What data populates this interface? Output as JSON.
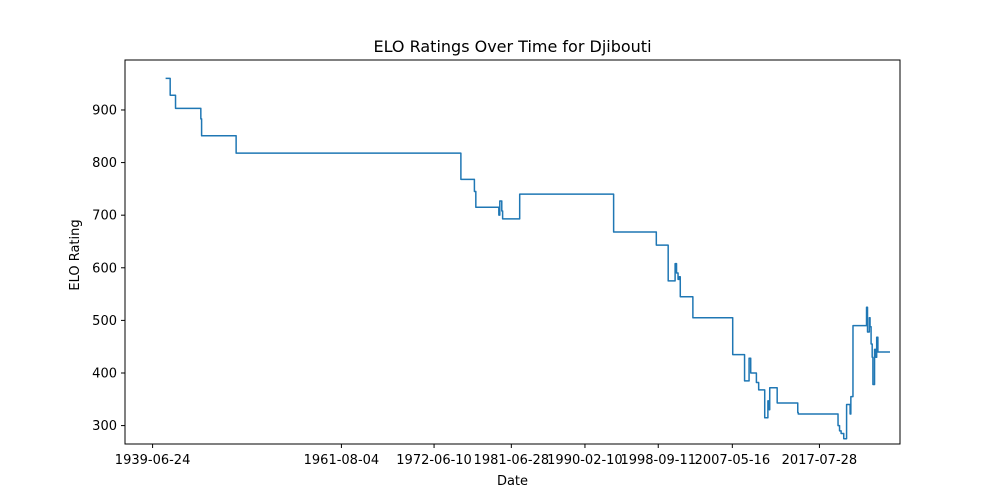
{
  "chart_data": {
    "type": "line",
    "title": "ELO Ratings Over Time for Djibouti",
    "xlabel": "Date",
    "ylabel": "ELO Rating",
    "x_ticks": [
      "1939-06-24",
      "1961-08-04",
      "1972-06-10",
      "1981-06-28",
      "1990-02-10",
      "1998-09-11",
      "2007-05-16",
      "2017-07-28"
    ],
    "y_ticks": [
      300,
      400,
      500,
      600,
      700,
      800,
      900
    ],
    "xlim": [
      "1936-03-31",
      "2027-01-03"
    ],
    "ylim": [
      265,
      995
    ],
    "grid": false,
    "legend": false,
    "line_color": "#1f77b4",
    "x": [
      "1941-01-01",
      "1941-07-15",
      "1941-07-16",
      "1942-03-01",
      "1942-03-02",
      "1945-02-15",
      "1945-02-16",
      "1945-03-20",
      "1945-03-21",
      "1949-04-05",
      "1949-04-06",
      "1975-08-01",
      "1975-08-02",
      "1977-03-01",
      "1977-03-02",
      "1977-05-01",
      "1977-05-02",
      "1980-01-10",
      "1980-01-11",
      "1980-02-20",
      "1980-02-21",
      "1980-05-15",
      "1980-05-16",
      "1980-06-20",
      "1980-06-21",
      "1982-06-20",
      "1982-06-21",
      "1993-06-20",
      "1993-06-21",
      "1998-06-20",
      "1998-06-21",
      "1999-11-10",
      "1999-11-11",
      "2000-09-01",
      "2000-09-02",
      "2000-11-01",
      "2000-11-02",
      "2001-01-05",
      "2001-01-06",
      "2001-03-01",
      "2001-03-02",
      "2001-04-10",
      "2001-04-11",
      "2002-10-01",
      "2002-10-02",
      "2007-06-01",
      "2007-06-02",
      "2008-10-20",
      "2008-10-21",
      "2009-05-01",
      "2009-05-02",
      "2009-07-10",
      "2009-07-11",
      "2010-03-10",
      "2010-03-11",
      "2010-06-15",
      "2010-06-16",
      "2011-03-01",
      "2011-03-02",
      "2011-07-15",
      "2011-07-16",
      "2011-09-10",
      "2011-09-11",
      "2011-10-01",
      "2011-10-02",
      "2012-08-15",
      "2012-08-16",
      "2015-01-12",
      "2015-01-13",
      "2015-02-01",
      "2015-02-02",
      "2019-10-01",
      "2019-10-02",
      "2019-12-05",
      "2019-12-06",
      "2020-02-10",
      "2020-02-11",
      "2020-06-01",
      "2020-06-02",
      "2020-10-01",
      "2020-10-02",
      "2021-03-01",
      "2021-03-02",
      "2021-04-01",
      "2021-04-02",
      "2021-07-01",
      "2021-07-02",
      "2023-02-01",
      "2023-02-02",
      "2023-03-15",
      "2023-03-16",
      "2023-06-01",
      "2023-06-02",
      "2023-07-01",
      "2023-07-02",
      "2023-08-15",
      "2023-08-16",
      "2023-10-01",
      "2023-10-02",
      "2023-11-01",
      "2023-11-02",
      "2024-01-10",
      "2024-01-11",
      "2024-03-01",
      "2024-03-02",
      "2024-04-10",
      "2024-04-11",
      "2024-06-01",
      "2024-06-02",
      "2025-04-01",
      "2025-04-02",
      "2025-06-01",
      "2025-06-02",
      "2025-08-01",
      "2025-08-02",
      "2025-09-01",
      "2025-09-02",
      "2025-10-01",
      "2025-10-02",
      "2025-11-01"
    ],
    "y": [
      960,
      960,
      928,
      928,
      903,
      903,
      883,
      883,
      851,
      851,
      818,
      818,
      768,
      768,
      745,
      745,
      715,
      715,
      700,
      700,
      727,
      727,
      708,
      708,
      693,
      693,
      740,
      740,
      668,
      668,
      643,
      643,
      575,
      575,
      608,
      608,
      590,
      590,
      578,
      578,
      583,
      583,
      545,
      545,
      505,
      505,
      435,
      435,
      385,
      385,
      428,
      428,
      400,
      400,
      382,
      382,
      368,
      368,
      315,
      315,
      347,
      347,
      330,
      330,
      372,
      372,
      343,
      343,
      325,
      325,
      322,
      322,
      300,
      300,
      290,
      290,
      285,
      285,
      275,
      275,
      340,
      340,
      322,
      322,
      355,
      355,
      490,
      490,
      525,
      525,
      478,
      478,
      505,
      505,
      488,
      488,
      455,
      455,
      430,
      430,
      378,
      378,
      445,
      445,
      430,
      430,
      468,
      468,
      440,
      440,
      440,
      440,
      440,
      440,
      440,
      440,
      440,
      440,
      440,
      440
    ]
  }
}
